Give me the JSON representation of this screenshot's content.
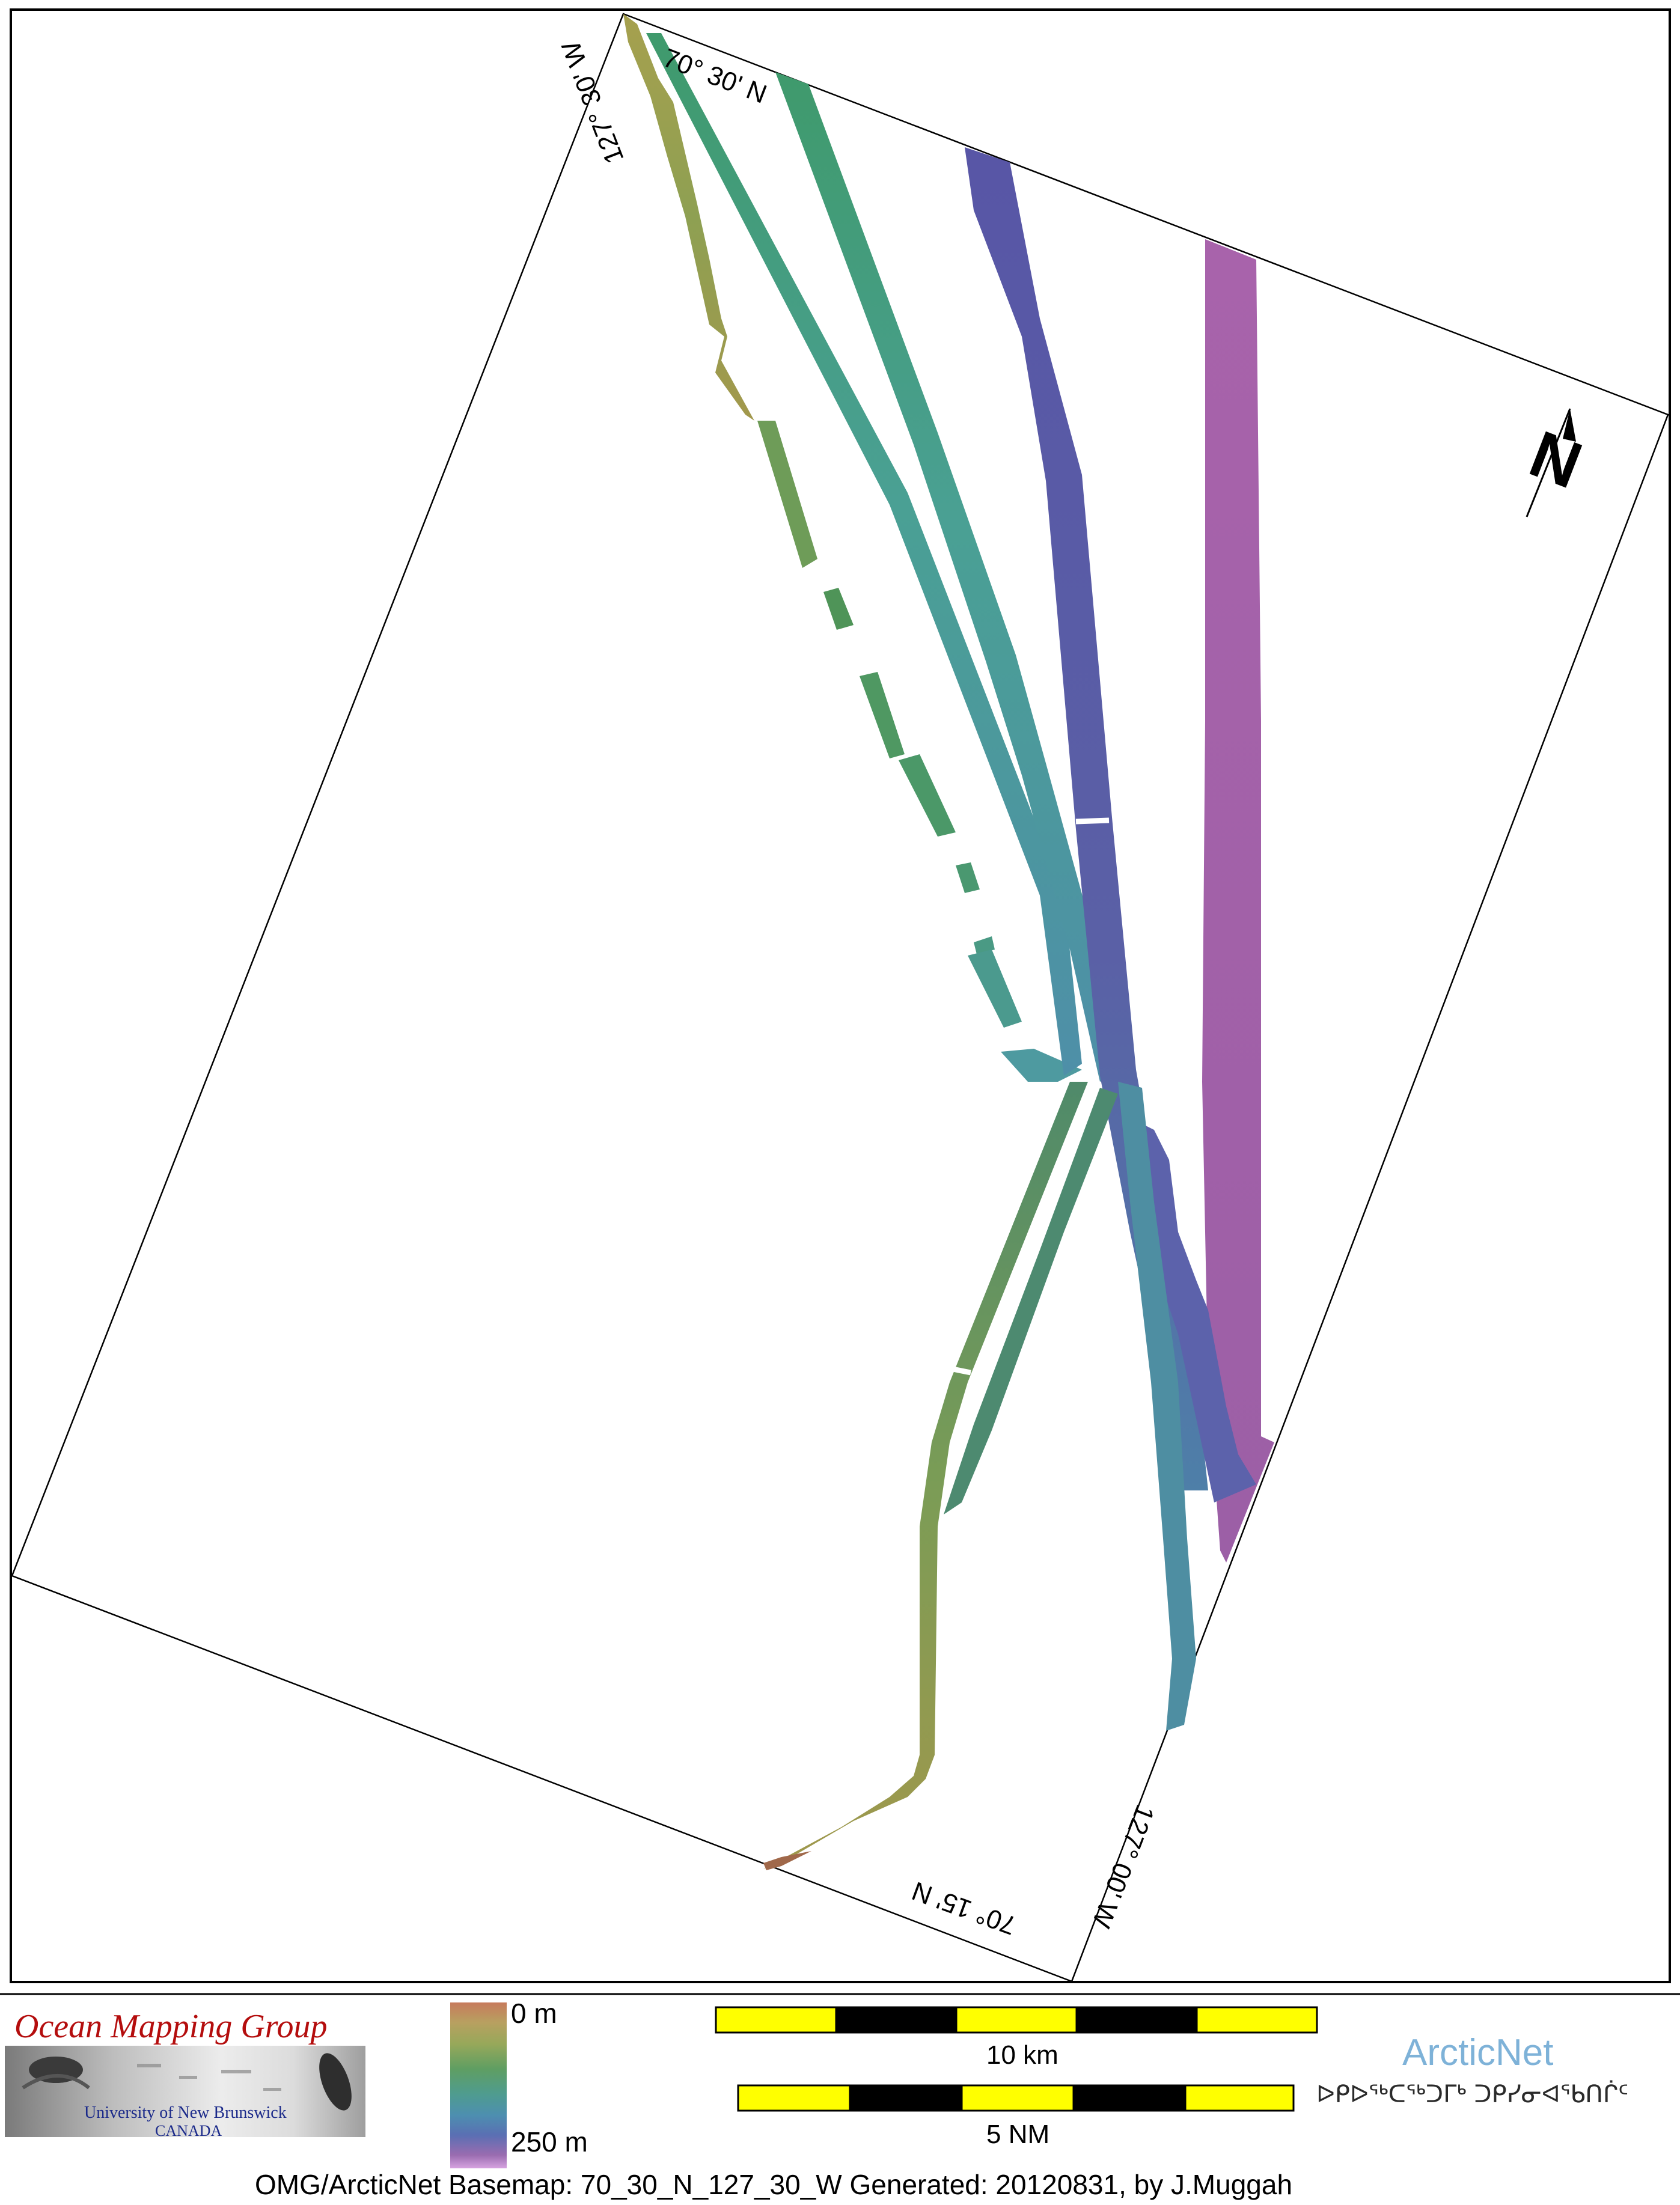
{
  "map": {
    "graticule_labels": {
      "top_latitude": "70° 30' N",
      "bottom_latitude": "70° 15' N",
      "left_longitude": "127° 30' W",
      "right_longitude": "127° 00' W"
    },
    "north_arrow_letter": "N",
    "swath_colors": {
      "shallow": "#9c9c4c",
      "mid_green": "#4d9261",
      "teal": "#4e9aa0",
      "blue": "#5a5fa8",
      "purple": "#a15fa8",
      "brown": "#a0684a"
    }
  },
  "legend": {
    "depth_top": "0 m",
    "depth_bottom": "250 m",
    "scale_km_label": "10 km",
    "scale_nm_label": "5 NM",
    "scale_fill_colors": [
      "#ffff00",
      "#000000"
    ]
  },
  "logos": {
    "omg_title": "Ocean Mapping Group",
    "omg_university": "University of New Brunswick",
    "omg_country": "CANADA",
    "arcticnet_title": "ArcticNet",
    "arcticnet_syllabics": "ᐅᑭᐅᖅᑕᖅᑐᒥᒃ ᑐᑭᓯᓂᐊᖃᑎᒌᑦ"
  },
  "footer": {
    "caption": "OMG/ArcticNet Basemap: 70_30_N_127_30_W     Generated: 20120831, by J.Muggah"
  }
}
